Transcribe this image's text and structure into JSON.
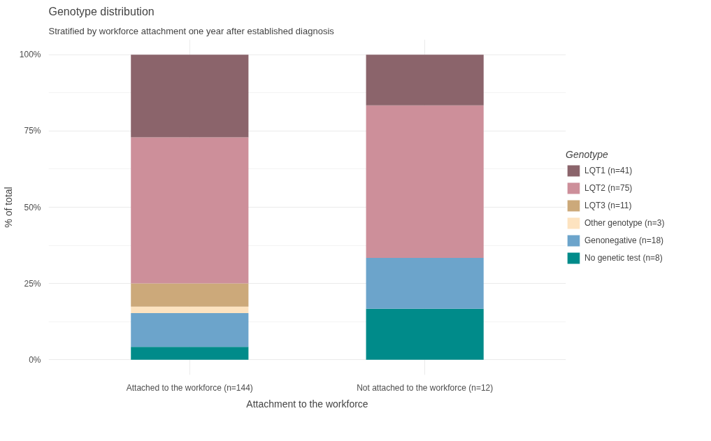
{
  "chart_data": {
    "type": "bar",
    "title": "Genotype distribution",
    "subtitle": "Stratified by workforce attachment one year after established diagnosis",
    "xlabel": "Attachment to the workforce",
    "ylabel": "% of total",
    "legend_title": "Genotype",
    "categories": [
      "Attached to the workforce (n=144)",
      "Not attached to the workforce (n=12)"
    ],
    "stacked": true,
    "series": [
      {
        "name": "No genetic test (n=8)",
        "color": "#008b8a",
        "values": [
          4.2,
          16.7
        ]
      },
      {
        "name": "Genonegative (n=18)",
        "color": "#6ca4cb",
        "values": [
          11.1,
          16.7
        ]
      },
      {
        "name": "Other genotype (n=3)",
        "color": "#fde3c0",
        "values": [
          2.1,
          0
        ]
      },
      {
        "name": "LQT3 (n=11)",
        "color": "#cca97a",
        "values": [
          7.6,
          0
        ]
      },
      {
        "name": "LQT2 (n=75)",
        "color": "#cd8f9a",
        "values": [
          47.9,
          50
        ]
      },
      {
        "name": "LQT1 (n=41)",
        "color": "#8b646b",
        "values": [
          27.1,
          16.6
        ]
      }
    ],
    "ylim": [
      -5,
      105
    ],
    "yticks": [
      {
        "value": 0,
        "label": "0%"
      },
      {
        "value": 25,
        "label": "25%"
      },
      {
        "value": 50,
        "label": "50%"
      },
      {
        "value": 75,
        "label": "75%"
      },
      {
        "value": 100,
        "label": "100%"
      }
    ],
    "grid": true,
    "legend": "right"
  }
}
